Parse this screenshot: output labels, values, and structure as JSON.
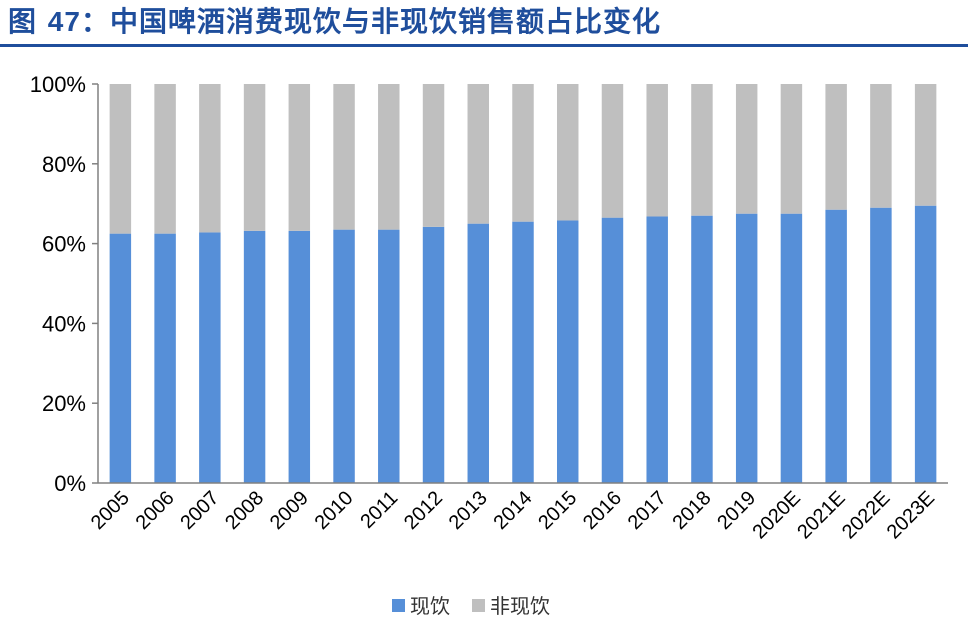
{
  "figure": {
    "label": "图",
    "number": "47",
    "separator": "：",
    "title": "中国啤酒消费现饮与非现饮销售额占比变化"
  },
  "colors": {
    "title": "#1f4e9c",
    "series_onsite": "#568fd8",
    "series_offsite": "#bfbfbf",
    "axis": "#808080"
  },
  "chart_data": {
    "type": "bar",
    "stacked": true,
    "percent": true,
    "categories": [
      "2005",
      "2006",
      "2007",
      "2008",
      "2009",
      "2010",
      "2011",
      "2012",
      "2013",
      "2014",
      "2015",
      "2016",
      "2017",
      "2018",
      "2019",
      "2020E",
      "2021E",
      "2022E",
      "2023E"
    ],
    "series": [
      {
        "name": "现饮",
        "color": "#568fd8",
        "values": [
          62.5,
          62.5,
          62.8,
          63.2,
          63.2,
          63.5,
          63.5,
          64.2,
          65.0,
          65.5,
          65.8,
          66.5,
          66.8,
          67.0,
          67.5,
          67.5,
          68.5,
          69.0,
          69.5
        ]
      },
      {
        "name": "非现饮",
        "color": "#bfbfbf",
        "values": [
          37.5,
          37.5,
          37.2,
          36.8,
          36.8,
          36.5,
          36.5,
          35.8,
          35.0,
          34.5,
          34.2,
          33.5,
          33.2,
          33.0,
          32.5,
          32.5,
          31.5,
          31.0,
          30.5
        ]
      }
    ],
    "yticks": [
      "0%",
      "20%",
      "40%",
      "60%",
      "80%",
      "100%"
    ],
    "ylim": [
      0,
      100
    ],
    "grid": false,
    "legend_position": "bottom"
  }
}
